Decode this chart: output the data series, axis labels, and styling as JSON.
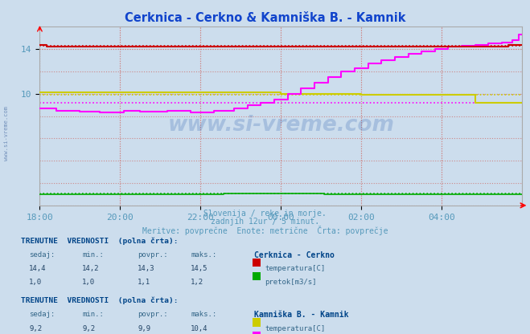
{
  "title": "Cerknica - Cerkno & Kamniška B. - Kamnik",
  "title_color": "#1144cc",
  "bg_color": "#ccdded",
  "xlabel_lines": [
    "Slovenija / reke in morje.",
    "zadnjih 12ur / 5 minut.",
    "Meritve: povprečne  Enote: metrične  Črta: povprečje"
  ],
  "xlabel_color": "#5599bb",
  "watermark": "www.si-vreme.com",
  "x_ticks": [
    0,
    24,
    48,
    72,
    96,
    120,
    144
  ],
  "x_tick_labels": [
    "18:00",
    "20:00",
    "22:00",
    "00:00",
    "02:00",
    "04:00",
    ""
  ],
  "y_min": 0,
  "y_max": 16.0,
  "y_ticks": [
    10,
    14
  ],
  "grid_color": "#cc8888",
  "series": {
    "cerknica_temp": {
      "color": "#cc0000",
      "avg": 14.3
    },
    "cerknica_pretok": {
      "color": "#00aa00",
      "avg": 1.1
    },
    "kamnik_temp": {
      "color": "#cccc00",
      "avg": 9.9
    },
    "kamnik_pretok": {
      "color": "#ff00ff",
      "avg": 9.2
    }
  },
  "table_header_color": "#004488",
  "table_value_color": "#224466",
  "table_label_color": "#336688"
}
